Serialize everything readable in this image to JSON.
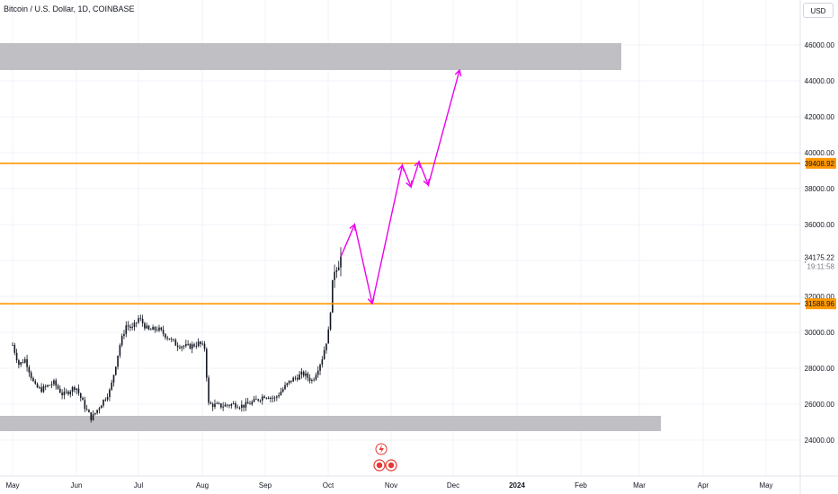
{
  "header": {
    "symbol_title": "Bitcoin / U.S. Dollar, 1D, COINBASE",
    "currency": "USD"
  },
  "chart_data": {
    "type": "candlestick",
    "title": "Bitcoin / U.S. Dollar, 1D, COINBASE",
    "y_axis": {
      "ticks": [
        "24000.00",
        "26000.00",
        "28000.00",
        "30000.00",
        "32000.00",
        "34000.00",
        "36000.00",
        "38000.00",
        "40000.00",
        "42000.00",
        "44000.00",
        "46000.00"
      ],
      "range": [
        23200,
        47500
      ]
    },
    "x_axis": {
      "ticks": [
        "May",
        "Jun",
        "Jul",
        "Aug",
        "Sep",
        "Oct",
        "Nov",
        "Dec",
        "2024",
        "Feb",
        "Mar",
        "Apr",
        "May"
      ],
      "bold_tick": "2024"
    },
    "price_labels": {
      "last_price": "34175.22",
      "countdown": "19:11:58",
      "upper_level": "39408.92",
      "lower_level": "31588.96"
    },
    "horizontal_levels": [
      {
        "value": 39408.92,
        "color": "#ff9800"
      },
      {
        "value": 31588.96,
        "color": "#ff9800"
      }
    ],
    "zones": [
      {
        "from": 44600,
        "to": 46100,
        "color": "#c0c0c4"
      },
      {
        "from": 24500,
        "to": 25350,
        "color": "#c0c0c4"
      }
    ],
    "candle_path": [
      [
        0,
        29300
      ],
      [
        0.1,
        28200
      ],
      [
        0.2,
        28500
      ],
      [
        0.35,
        27000
      ],
      [
        0.45,
        26800
      ],
      [
        0.65,
        27200
      ],
      [
        0.8,
        26500
      ],
      [
        1.0,
        27000
      ],
      [
        1.15,
        25800
      ],
      [
        1.25,
        25200
      ],
      [
        1.4,
        26000
      ],
      [
        1.55,
        26800
      ],
      [
        1.7,
        29300
      ],
      [
        1.8,
        30400
      ],
      [
        1.9,
        30200
      ],
      [
        2.0,
        30800
      ],
      [
        2.15,
        30100
      ],
      [
        2.3,
        30200
      ],
      [
        2.5,
        29600
      ],
      [
        2.6,
        29300
      ],
      [
        2.8,
        29200
      ],
      [
        2.95,
        29400
      ],
      [
        3.05,
        29100
      ],
      [
        3.1,
        26000
      ],
      [
        3.3,
        25900
      ],
      [
        3.5,
        26000
      ],
      [
        3.65,
        25900
      ],
      [
        3.8,
        26100
      ],
      [
        4.0,
        26500
      ],
      [
        4.15,
        26300
      ],
      [
        4.25,
        26700
      ],
      [
        4.4,
        27300
      ],
      [
        4.6,
        27700
      ],
      [
        4.75,
        27300
      ],
      [
        4.9,
        28500
      ],
      [
        5.0,
        29900
      ],
      [
        5.1,
        33600
      ],
      [
        5.2,
        34175
      ]
    ],
    "projection_path": [
      [
        5.2,
        34200
      ],
      [
        5.42,
        36000
      ],
      [
        5.7,
        31600
      ],
      [
        6.18,
        39300
      ],
      [
        6.32,
        38100
      ],
      [
        6.45,
        39500
      ],
      [
        6.6,
        38200
      ],
      [
        7.1,
        44600
      ]
    ],
    "projection_color": "#ee00ee"
  }
}
